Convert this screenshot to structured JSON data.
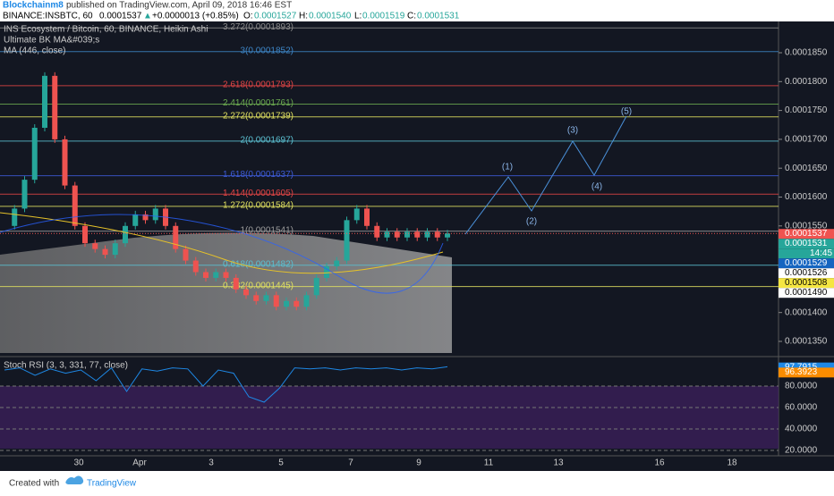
{
  "header": {
    "author": "Blockchainm8",
    "published": "published on TradingView.com, April 09, 2018 16:46 EST",
    "symbol": "BINANCE:INSBTC, 60",
    "last": "0.0001537",
    "change": "+0.0000013 (+0.85%)",
    "o_label": "O:",
    "o": "0.0001527",
    "h_label": "H:",
    "h": "0.0001540",
    "l_label": "L:",
    "l": "0.0001519",
    "c_label": "C:",
    "c": "0.0001531"
  },
  "legend": [
    "INS Ecosystem / Bitcoin, 60, BINANCE, Heikin Ashi",
    "Ultimate BK MA&#039;s",
    "MA (446, close)"
  ],
  "fib_levels": [
    {
      "value": 0.0001893,
      "label": "3.272(0.0001893)",
      "color": "#8a8a8a"
    },
    {
      "value": 0.0001852,
      "label": "3(0.0001852)",
      "color": "#3d85c6"
    },
    {
      "value": 0.0001793,
      "label": "2.618(0.0001793)",
      "color": "#e04545"
    },
    {
      "value": 0.0001761,
      "label": "2.414(0.0001761)",
      "color": "#6aa84f"
    },
    {
      "value": 0.0001739,
      "label": "2.272(0.0001739)",
      "color": "#e0e060"
    },
    {
      "value": 0.0001697,
      "label": "2(0.0001697)",
      "color": "#5bbfd0"
    },
    {
      "value": 0.0001637,
      "label": "1.618(0.0001637)",
      "color": "#3d5bd6"
    },
    {
      "value": 0.0001605,
      "label": "1.414(0.0001605)",
      "color": "#e04545"
    },
    {
      "value": 0.0001584,
      "label": "1.272(0.0001584)",
      "color": "#e0e060"
    },
    {
      "value": 0.0001541,
      "label": "1(0.0001541)",
      "color": "#9a9a9a"
    },
    {
      "value": 0.0001482,
      "label": "0.618(0.0001482)",
      "color": "#5bbfd0"
    },
    {
      "value": 0.0001445,
      "label": "0.382(0.0001445)",
      "color": "#e0e060"
    }
  ],
  "price_axis": [
    {
      "value": 0.000185,
      "label": "0.0001850"
    },
    {
      "value": 0.00018,
      "label": "0.0001800"
    },
    {
      "value": 0.000175,
      "label": "0.0001750"
    },
    {
      "value": 0.00017,
      "label": "0.0001700"
    },
    {
      "value": 0.000165,
      "label": "0.0001650"
    },
    {
      "value": 0.00016,
      "label": "0.0001600"
    },
    {
      "value": 0.000155,
      "label": "0.0001550"
    },
    {
      "value": 0.00014,
      "label": "0.0001400"
    },
    {
      "value": 0.000135,
      "label": "0.0001350"
    }
  ],
  "price_badges": [
    {
      "value": 0.0001537,
      "label": "0.0001537",
      "color": "#ef5350"
    },
    {
      "value": 0.0001531,
      "label": "0.0001531",
      "color": "#26a69a"
    },
    {
      "value": 0.0001529,
      "label": "0.0001529",
      "color": "#1565c0"
    },
    {
      "value": 0.0001526,
      "label": "0.0001526",
      "color": "#ffffff"
    },
    {
      "value": 0.0001508,
      "label": "0.0001508",
      "color": "#f5e642"
    },
    {
      "value": 0.000149,
      "label": "0.0001490",
      "color": "#ffffff"
    }
  ],
  "countdown": "14:45",
  "heikin_ashi_close": [
    0.000155,
    0.000158,
    0.000163,
    0.000172,
    0.000181,
    0.00017,
    0.000162,
    0.000155,
    0.000152,
    0.000151,
    0.00015,
    0.000152,
    0.000155,
    0.000157,
    0.000156,
    0.000158,
    0.000155,
    0.000151,
    0.000149,
    0.000147,
    0.000146,
    0.000147,
    0.000146,
    0.000144,
    0.000143,
    0.000142,
    0.000143,
    0.000141,
    0.000142,
    0.000141,
    0.000143,
    0.000146,
    0.000148,
    0.000149,
    0.000156,
    0.000158,
    0.000155,
    0.000153,
    0.000154,
    0.000153,
    0.000154,
    0.000153,
    0.000154,
    0.000153,
    0.0001537
  ],
  "time_axis": [
    "30",
    "Apr",
    "3",
    "5",
    "7",
    "9",
    "11",
    "13",
    "16",
    "18"
  ],
  "waves": [
    "(1)",
    "(2)",
    "(3)",
    "(4)",
    "(5)"
  ],
  "rsi": {
    "label": "Stoch RSI (3, 3, 331, 77, close)",
    "ticks": [
      {
        "value": 80,
        "label": "80.0000"
      },
      {
        "value": 60,
        "label": "60.0000"
      },
      {
        "value": 40,
        "label": "40.0000"
      },
      {
        "value": 20,
        "label": "20.0000"
      }
    ],
    "badges": [
      {
        "value": 97.7915,
        "label": "97.7915",
        "color": "#1e88e5"
      },
      {
        "value": 96.3923,
        "label": "96.3923",
        "color": "#fb8c00"
      }
    ],
    "values": [
      95,
      97,
      90,
      96,
      92,
      95,
      85,
      97,
      75,
      96,
      94,
      97,
      96,
      80,
      95,
      92,
      70,
      65,
      78,
      97,
      96,
      97,
      95,
      97,
      96,
      97,
      95,
      97,
      96,
      98
    ]
  },
  "footer": {
    "created": "Created with",
    "brand": "TradingView"
  }
}
